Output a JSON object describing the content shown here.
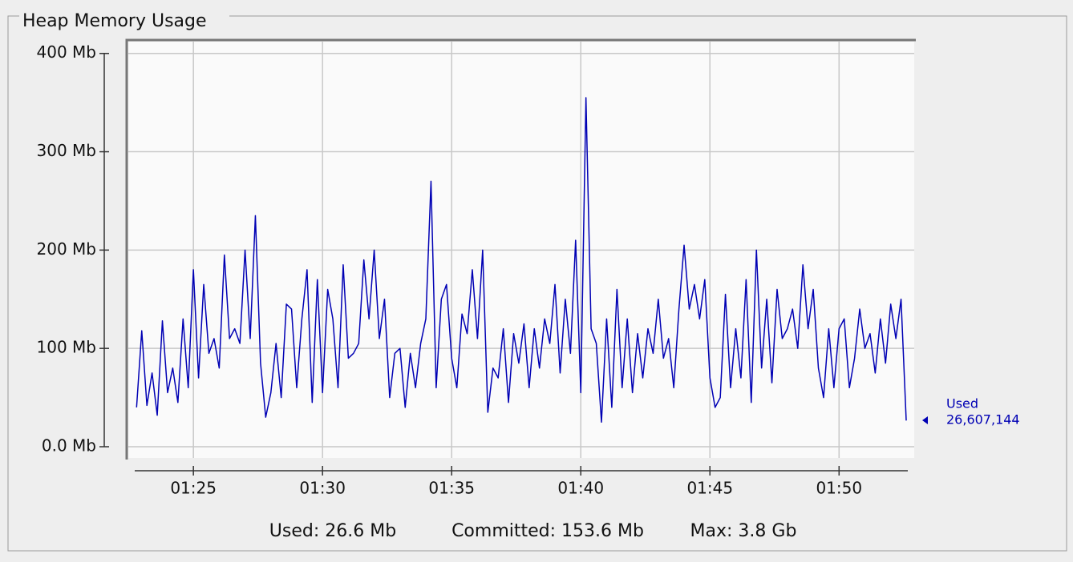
{
  "chart_data": {
    "type": "line",
    "title": "Heap Memory Usage",
    "x": [
      82.8,
      83,
      83.2,
      83.4,
      83.6,
      83.8,
      84,
      84.2,
      84.4,
      84.6,
      84.8,
      85,
      85.2,
      85.4,
      85.6,
      85.8,
      86,
      86.2,
      86.4,
      86.6,
      86.8,
      87,
      87.2,
      87.4,
      87.6,
      87.8,
      88,
      88.2,
      88.4,
      88.6,
      88.8,
      89,
      89.2,
      89.4,
      89.6,
      89.8,
      90,
      90.2,
      90.4,
      90.6,
      90.8,
      91,
      91.2,
      91.4,
      91.6,
      91.8,
      92,
      92.2,
      92.4,
      92.6,
      92.8,
      93,
      93.2,
      93.4,
      93.6,
      93.8,
      94,
      94.2,
      94.4,
      94.6,
      94.8,
      95,
      95.2,
      95.4,
      95.6,
      95.8,
      96,
      96.2,
      96.4,
      96.6,
      96.8,
      97,
      97.2,
      97.4,
      97.6,
      97.8,
      98,
      98.2,
      98.4,
      98.6,
      98.8,
      99,
      99.2,
      99.4,
      99.6,
      99.8,
      100,
      100.2,
      100.4,
      100.6,
      100.8,
      101,
      101.2,
      101.4,
      101.6,
      101.8,
      102,
      102.2,
      102.4,
      102.6,
      102.8,
      103,
      103.2,
      103.4,
      103.6,
      103.8,
      104,
      104.2,
      104.4,
      104.6,
      104.8,
      105,
      105.2,
      105.4,
      105.6,
      105.8,
      106,
      106.2,
      106.4,
      106.6,
      106.8,
      107,
      107.2,
      107.4,
      107.6,
      107.8,
      108,
      108.2,
      108.4,
      108.6,
      108.8,
      109,
      109.2,
      109.4,
      109.6,
      109.8,
      110,
      110.2,
      110.4,
      110.6,
      110.8,
      111,
      111.2,
      111.4,
      111.6,
      111.8,
      112,
      112.2,
      112.4,
      112.6
    ],
    "series": [
      {
        "name": "Used",
        "color": "#0000b4",
        "last_value_label": "26,607,144",
        "values": [
          40,
          118,
          42,
          75,
          32,
          128,
          55,
          80,
          45,
          130,
          60,
          180,
          70,
          165,
          95,
          110,
          80,
          195,
          110,
          120,
          105,
          200,
          110,
          235,
          85,
          30,
          55,
          105,
          50,
          145,
          140,
          60,
          130,
          180,
          45,
          170,
          55,
          160,
          130,
          60,
          185,
          90,
          95,
          105,
          190,
          130,
          200,
          110,
          150,
          50,
          95,
          100,
          40,
          95,
          60,
          105,
          130,
          270,
          60,
          150,
          165,
          90,
          60,
          135,
          115,
          180,
          110,
          200,
          35,
          80,
          70,
          120,
          45,
          115,
          85,
          125,
          60,
          120,
          80,
          130,
          105,
          165,
          75,
          150,
          95,
          210,
          55,
          355,
          120,
          105,
          25,
          130,
          40,
          160,
          60,
          130,
          55,
          115,
          70,
          120,
          95,
          150,
          90,
          110,
          60,
          140,
          205,
          140,
          165,
          130,
          170,
          70,
          40,
          50,
          155,
          60,
          120,
          70,
          170,
          45,
          200,
          80,
          150,
          65,
          160,
          110,
          120,
          140,
          100,
          185,
          120,
          160,
          80,
          50,
          120,
          60,
          120,
          130,
          60,
          90,
          140,
          100,
          115,
          75,
          130,
          85,
          145,
          110,
          150,
          26.607144
        ]
      }
    ],
    "xlim": [
      82.48,
      112.91
    ],
    "ylim": [
      -11.4,
      412
    ],
    "xticks": [
      {
        "value": 85,
        "label": "01:25"
      },
      {
        "value": 90,
        "label": "01:30"
      },
      {
        "value": 95,
        "label": "01:35"
      },
      {
        "value": 100,
        "label": "01:40"
      },
      {
        "value": 105,
        "label": "01:45"
      },
      {
        "value": 110,
        "label": "01:50"
      }
    ],
    "yticks": [
      {
        "value": 0,
        "label": "0.0 Mb"
      },
      {
        "value": 100,
        "label": "100 Mb"
      },
      {
        "value": 200,
        "label": "200 Mb"
      },
      {
        "value": 300,
        "label": "300 Mb"
      },
      {
        "value": 400,
        "label": "400 Mb"
      }
    ],
    "grid": true,
    "footer": [
      "Used: 26.6 Mb",
      "Committed: 153.6 Mb",
      "Max: 3.8 Gb"
    ]
  }
}
